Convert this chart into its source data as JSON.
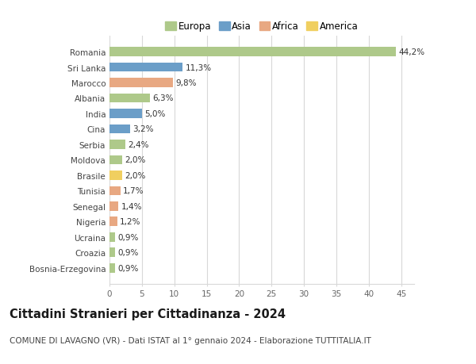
{
  "categories": [
    "Bosnia-Erzegovina",
    "Croazia",
    "Ucraina",
    "Nigeria",
    "Senegal",
    "Tunisia",
    "Brasile",
    "Moldova",
    "Serbia",
    "Cina",
    "India",
    "Albania",
    "Marocco",
    "Sri Lanka",
    "Romania"
  ],
  "values": [
    0.9,
    0.9,
    0.9,
    1.2,
    1.4,
    1.7,
    2.0,
    2.0,
    2.4,
    3.2,
    5.0,
    6.3,
    9.8,
    11.3,
    44.2
  ],
  "labels": [
    "0,9%",
    "0,9%",
    "0,9%",
    "1,2%",
    "1,4%",
    "1,7%",
    "2,0%",
    "2,0%",
    "2,4%",
    "3,2%",
    "5,0%",
    "6,3%",
    "9,8%",
    "11,3%",
    "44,2%"
  ],
  "continents": [
    "Europa",
    "Europa",
    "Europa",
    "Africa",
    "Africa",
    "Africa",
    "America",
    "Europa",
    "Europa",
    "Asia",
    "Asia",
    "Europa",
    "Africa",
    "Asia",
    "Europa"
  ],
  "continent_colors": {
    "Europa": "#aec98a",
    "Asia": "#6b9ec8",
    "Africa": "#e8a882",
    "America": "#f0cf60"
  },
  "legend_items": [
    "Europa",
    "Asia",
    "Africa",
    "America"
  ],
  "title": "Cittadini Stranieri per Cittadinanza - 2024",
  "subtitle": "COMUNE DI LAVAGNO (VR) - Dati ISTAT al 1° gennaio 2024 - Elaborazione TUTTITALIA.IT",
  "xlim": [
    0,
    47
  ],
  "xticks": [
    0,
    5,
    10,
    15,
    20,
    25,
    30,
    35,
    40,
    45
  ],
  "background_color": "#ffffff",
  "grid_color": "#d8d8d8",
  "bar_height": 0.6,
  "title_fontsize": 10.5,
  "subtitle_fontsize": 7.5,
  "label_fontsize": 7.5,
  "tick_fontsize": 7.5,
  "legend_fontsize": 8.5
}
